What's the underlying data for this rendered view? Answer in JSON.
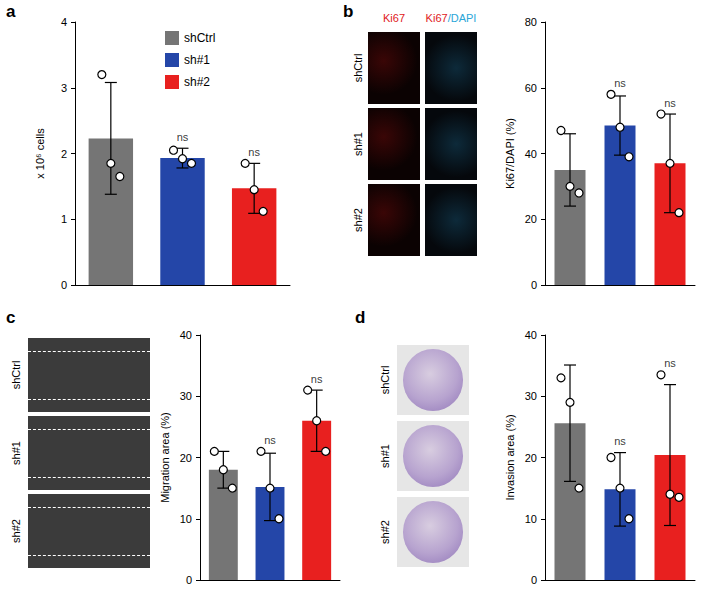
{
  "chart_data": [
    {
      "panel": "a",
      "type": "bar",
      "y_label": "x 10⁶ cells",
      "categories": [
        "shCtrl",
        "sh#1",
        "sh#2"
      ],
      "values": [
        2.23,
        1.93,
        1.47
      ],
      "errors": [
        0.85,
        0.15,
        0.38
      ],
      "points": [
        [
          3.2,
          1.85,
          1.65
        ],
        [
          2.05,
          1.92,
          1.85
        ],
        [
          1.85,
          1.45,
          1.12
        ]
      ],
      "significance": [
        null,
        "ns",
        "ns"
      ],
      "colors": [
        "#757575",
        "#2446a8",
        "#e8201f"
      ],
      "ylim": [
        0,
        4
      ],
      "yticks": [
        0,
        1,
        2,
        3,
        4
      ],
      "grid": false,
      "tick_labels": "y",
      "legend": "top"
    },
    {
      "panel": "b",
      "type": "bar",
      "y_label": "Ki67/DAPI (%)",
      "categories": [
        "shCtrl",
        "sh#1",
        "sh#2"
      ],
      "values": [
        35,
        48.5,
        37
      ],
      "errors": [
        11,
        9,
        15
      ],
      "points": [
        [
          47,
          30,
          28
        ],
        [
          58,
          48,
          39
        ],
        [
          52,
          37,
          22
        ]
      ],
      "significance": [
        null,
        "ns",
        "ns"
      ],
      "colors": [
        "#757575",
        "#2446a8",
        "#e8201f"
      ],
      "ylim": [
        0,
        80
      ],
      "yticks": [
        0,
        20,
        40,
        60,
        80
      ],
      "image_columns": [
        "Ki67",
        "Ki67/DAPI"
      ],
      "grid": false,
      "tick_labels": "y"
    },
    {
      "panel": "c",
      "type": "bar",
      "y_label": "Migration area (%)",
      "categories": [
        "shCtrl",
        "sh#1",
        "sh#2"
      ],
      "values": [
        18,
        15.2,
        26
      ],
      "errors": [
        3,
        5.5,
        5
      ],
      "points": [
        [
          21,
          18,
          15
        ],
        [
          21,
          15,
          10
        ],
        [
          31,
          26,
          21
        ]
      ],
      "significance": [
        null,
        "ns",
        "ns"
      ],
      "colors": [
        "#757575",
        "#2446a8",
        "#e8201f"
      ],
      "ylim": [
        0,
        40
      ],
      "yticks": [
        0,
        10,
        20,
        30,
        40
      ],
      "grid": false,
      "tick_labels": "y"
    },
    {
      "panel": "d",
      "type": "bar",
      "y_label": "Invasion area (%)",
      "categories": [
        "shCtrl",
        "sh#1",
        "sh#2"
      ],
      "values": [
        25.6,
        14.8,
        20.4
      ],
      "errors": [
        9.5,
        6,
        11.5
      ],
      "points": [
        [
          33,
          29,
          15
        ],
        [
          20,
          15,
          10
        ],
        [
          33.5,
          14,
          13.5
        ]
      ],
      "significance": [
        null,
        "ns",
        "ns"
      ],
      "colors": [
        "#757575",
        "#2446a8",
        "#e8201f"
      ],
      "ylim": [
        0,
        40
      ],
      "yticks": [
        0,
        10,
        20,
        30,
        40
      ],
      "grid": false,
      "tick_labels": "y"
    }
  ]
}
